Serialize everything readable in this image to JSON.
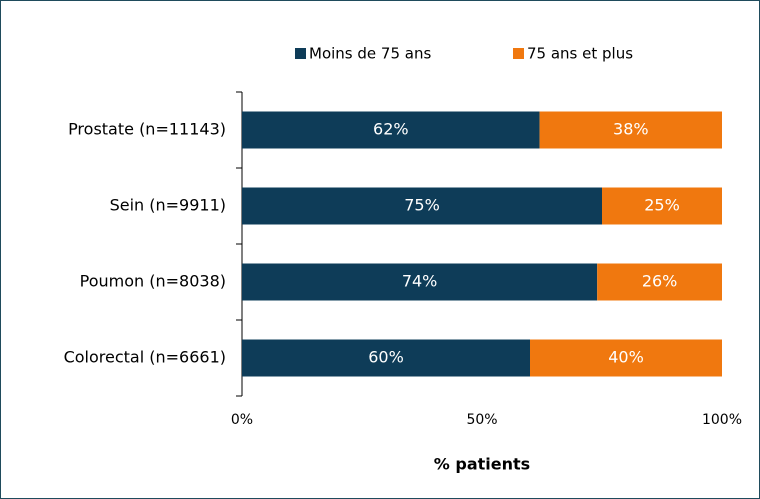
{
  "chart_data": {
    "type": "stacked-bar-horizontal",
    "categories": [
      "Prostate (n=11143)",
      "Sein (n=9911)",
      "Poumon (n=8038)",
      "Colorectal (n=6661)"
    ],
    "series": [
      {
        "name": "Moins de 75 ans",
        "color": "#0e3c58",
        "values": [
          62,
          75,
          74,
          60
        ],
        "value_labels": [
          "62%",
          "75%",
          "74%",
          "60%"
        ]
      },
      {
        "name": "75 ans et plus",
        "color": "#f0780f",
        "values": [
          38,
          25,
          26,
          40
        ],
        "value_labels": [
          "38%",
          "25%",
          "26%",
          "40%"
        ]
      }
    ],
    "xlim": [
      0,
      100
    ],
    "xticks": [
      {
        "value": 0,
        "label": "0%"
      },
      {
        "value": 50,
        "label": "50%"
      },
      {
        "value": 100,
        "label": "100%"
      }
    ],
    "xlabel": "% patients",
    "legend": "top"
  }
}
